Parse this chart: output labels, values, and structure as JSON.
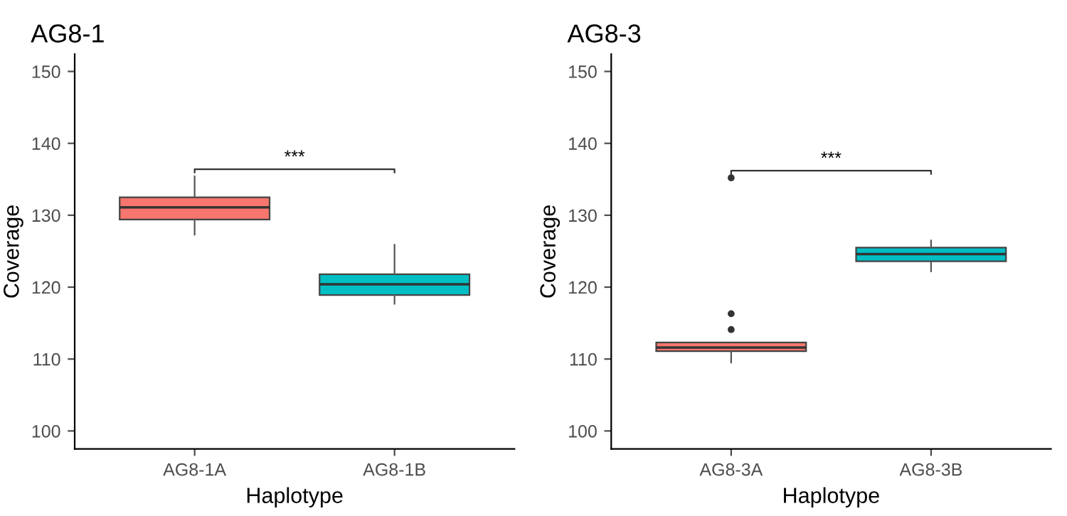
{
  "chart_data": [
    {
      "type": "box",
      "title": "AG8-1",
      "xlabel": "Haplotype",
      "ylabel": "Coverage",
      "categories": [
        "AG8-1A",
        "AG8-1B"
      ],
      "colors": [
        "#f8766d",
        "#00bfc4"
      ],
      "boxes": [
        {
          "low": 127.3,
          "q1": 129.4,
          "median": 131.1,
          "q3": 132.5,
          "high": 135.4
        },
        {
          "low": 117.7,
          "q1": 118.9,
          "median": 120.4,
          "q3": 121.8,
          "high": 125.9
        }
      ],
      "ylim": [
        97.5,
        152.4
      ],
      "yticks": [
        100,
        110,
        120,
        130,
        140,
        150
      ],
      "grid": false,
      "annotations": [
        "***"
      ]
    },
    {
      "type": "box",
      "title": "AG8-3",
      "xlabel": "Haplotype",
      "ylabel": "Coverage",
      "categories": [
        "AG8-3A",
        "AG8-3B"
      ],
      "colors": [
        "#f8766d",
        "#00bfc4"
      ],
      "boxes": [
        {
          "low": 109.5,
          "q1": 111.1,
          "median": 111.6,
          "q3": 112.3,
          "high": 112.3,
          "outliers": [
            135.2,
            116.3,
            114.1
          ]
        },
        {
          "low": 122.2,
          "q1": 123.6,
          "median": 124.6,
          "q3": 125.5,
          "high": 126.5
        }
      ],
      "ylim": [
        97.5,
        152.4
      ],
      "yticks": [
        100,
        110,
        120,
        130,
        140,
        150
      ],
      "grid": false,
      "annotations": [
        "***"
      ]
    }
  ]
}
